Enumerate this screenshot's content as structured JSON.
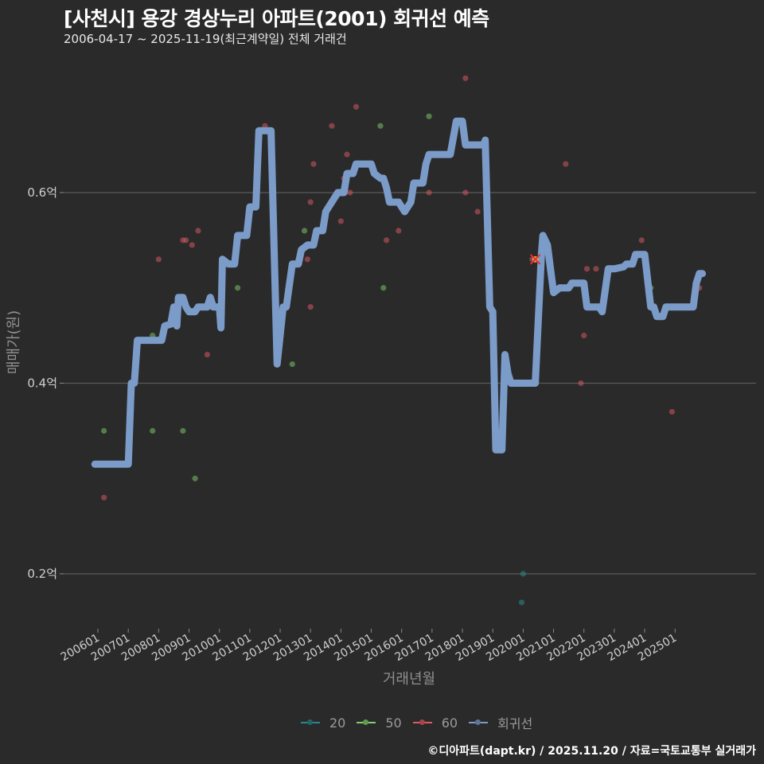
{
  "header": {
    "title": "[사천시] 용강 경상누리 아파트(2001) 회귀선 예측",
    "subtitle": "2006-04-17 ~ 2025-11-19(최근계약일) 전체 거래건"
  },
  "footer": {
    "credit": "©디아파트(dapt.kr) / 2025.11.20 / 자료=국토교통부 실거래가"
  },
  "legend": [
    {
      "label": "20",
      "color": "#2a8a8a"
    },
    {
      "label": "50",
      "color": "#7fcf6a"
    },
    {
      "label": "60",
      "color": "#e05a64"
    },
    {
      "label": "회귀선",
      "color": "#7b9bc8"
    }
  ],
  "chart_data": {
    "type": "scatter",
    "title": "[사천시] 용강 경상누리 아파트(2001) 회귀선 예측",
    "subtitle": "2006-04-17 ~ 2025-11-19(최근계약일) 전체 거래건",
    "xlabel": "거래년월",
    "ylabel": "매매가(원)",
    "x_ticks": [
      "200601",
      "200701",
      "200801",
      "200901",
      "201001",
      "201101",
      "201201",
      "201301",
      "201401",
      "201501",
      "201601",
      "201701",
      "201801",
      "201901",
      "202001",
      "202101",
      "202201",
      "202301",
      "202401",
      "202501"
    ],
    "y_ticks": [
      {
        "value": 0.2,
        "label": "0.2억"
      },
      {
        "value": 0.4,
        "label": "0.4억"
      },
      {
        "value": 0.6,
        "label": "0.6억"
      }
    ],
    "ylim": [
      0.14,
      0.74
    ],
    "xlim": [
      2005.6,
      2026.3
    ],
    "grid": "horizontal",
    "legend_position": "bottom",
    "series": [
      {
        "name": "20",
        "color": "#2a8a8a",
        "points": [
          [
            2020.0,
            0.2
          ],
          [
            2019.95,
            0.17
          ]
        ]
      },
      {
        "name": "50",
        "color": "#7fcf6a",
        "points": [
          [
            2006.2,
            0.35
          ],
          [
            2007.8,
            0.45
          ],
          [
            2007.8,
            0.35
          ],
          [
            2008.8,
            0.35
          ],
          [
            2009.2,
            0.3
          ],
          [
            2010.6,
            0.5
          ],
          [
            2012.4,
            0.42
          ],
          [
            2012.8,
            0.56
          ],
          [
            2015.3,
            0.67
          ],
          [
            2015.4,
            0.5
          ],
          [
            2016.9,
            0.68
          ],
          [
            2024.2,
            0.5
          ]
        ]
      },
      {
        "name": "60",
        "color": "#e05a64",
        "points": [
          [
            2006.2,
            0.28
          ],
          [
            2008.0,
            0.53
          ],
          [
            2008.8,
            0.55
          ],
          [
            2008.9,
            0.55
          ],
          [
            2009.1,
            0.545
          ],
          [
            2009.3,
            0.56
          ],
          [
            2009.6,
            0.43
          ],
          [
            2011.5,
            0.67
          ],
          [
            2012.6,
            0.53
          ],
          [
            2012.9,
            0.53
          ],
          [
            2013.0,
            0.59
          ],
          [
            2013.1,
            0.63
          ],
          [
            2013.0,
            0.48
          ],
          [
            2013.7,
            0.67
          ],
          [
            2014.0,
            0.57
          ],
          [
            2014.1,
            0.615
          ],
          [
            2014.2,
            0.64
          ],
          [
            2014.3,
            0.6
          ],
          [
            2014.5,
            0.69
          ],
          [
            2014.9,
            0.63
          ],
          [
            2015.5,
            0.55
          ],
          [
            2015.9,
            0.56
          ],
          [
            2016.9,
            0.6
          ],
          [
            2018.1,
            0.72
          ],
          [
            2018.1,
            0.6
          ],
          [
            2018.5,
            0.58
          ],
          [
            2020.3,
            0.53
          ],
          [
            2021.4,
            0.63
          ],
          [
            2021.9,
            0.4
          ],
          [
            2022.0,
            0.45
          ],
          [
            2022.1,
            0.52
          ],
          [
            2022.4,
            0.52
          ],
          [
            2023.9,
            0.55
          ],
          [
            2024.9,
            0.37
          ],
          [
            2025.8,
            0.5
          ]
        ]
      },
      {
        "name": "회귀선",
        "color": "#7b9bc8",
        "type": "line",
        "points": [
          [
            2005.9,
            0.315
          ],
          [
            2006.1,
            0.315
          ],
          [
            2007.0,
            0.315
          ],
          [
            2007.1,
            0.4
          ],
          [
            2007.2,
            0.4
          ],
          [
            2007.3,
            0.445
          ],
          [
            2008.0,
            0.445
          ],
          [
            2008.1,
            0.445
          ],
          [
            2008.2,
            0.46
          ],
          [
            2008.4,
            0.462
          ],
          [
            2008.5,
            0.48
          ],
          [
            2008.6,
            0.46
          ],
          [
            2008.65,
            0.49
          ],
          [
            2008.8,
            0.49
          ],
          [
            2008.9,
            0.48
          ],
          [
            2009.0,
            0.475
          ],
          [
            2009.2,
            0.475
          ],
          [
            2009.3,
            0.48
          ],
          [
            2009.4,
            0.48
          ],
          [
            2009.6,
            0.48
          ],
          [
            2009.7,
            0.49
          ],
          [
            2009.8,
            0.48
          ],
          [
            2010.0,
            0.48
          ],
          [
            2010.05,
            0.458
          ],
          [
            2010.1,
            0.53
          ],
          [
            2010.3,
            0.525
          ],
          [
            2010.5,
            0.525
          ],
          [
            2010.6,
            0.555
          ],
          [
            2010.9,
            0.555
          ],
          [
            2011.0,
            0.585
          ],
          [
            2011.2,
            0.585
          ],
          [
            2011.3,
            0.665
          ],
          [
            2011.6,
            0.665
          ],
          [
            2011.7,
            0.665
          ],
          [
            2011.9,
            0.42
          ],
          [
            2012.1,
            0.48
          ],
          [
            2012.2,
            0.48
          ],
          [
            2012.4,
            0.525
          ],
          [
            2012.6,
            0.525
          ],
          [
            2012.7,
            0.54
          ],
          [
            2012.9,
            0.545
          ],
          [
            2013.1,
            0.545
          ],
          [
            2013.2,
            0.56
          ],
          [
            2013.4,
            0.56
          ],
          [
            2013.5,
            0.58
          ],
          [
            2013.7,
            0.59
          ],
          [
            2013.9,
            0.6
          ],
          [
            2014.1,
            0.6
          ],
          [
            2014.2,
            0.62
          ],
          [
            2014.4,
            0.62
          ],
          [
            2014.5,
            0.63
          ],
          [
            2015.0,
            0.63
          ],
          [
            2015.1,
            0.62
          ],
          [
            2015.3,
            0.615
          ],
          [
            2015.4,
            0.615
          ],
          [
            2015.5,
            0.605
          ],
          [
            2015.6,
            0.59
          ],
          [
            2015.9,
            0.59
          ],
          [
            2016.0,
            0.585
          ],
          [
            2016.1,
            0.58
          ],
          [
            2016.3,
            0.59
          ],
          [
            2016.4,
            0.61
          ],
          [
            2016.7,
            0.61
          ],
          [
            2016.8,
            0.63
          ],
          [
            2016.9,
            0.64
          ],
          [
            2017.6,
            0.64
          ],
          [
            2017.8,
            0.675
          ],
          [
            2018.0,
            0.675
          ],
          [
            2018.1,
            0.65
          ],
          [
            2018.7,
            0.65
          ],
          [
            2018.75,
            0.655
          ],
          [
            2018.9,
            0.48
          ],
          [
            2019.0,
            0.475
          ],
          [
            2019.1,
            0.33
          ],
          [
            2019.3,
            0.33
          ],
          [
            2019.4,
            0.43
          ],
          [
            2019.5,
            0.41
          ],
          [
            2019.6,
            0.4
          ],
          [
            2020.4,
            0.4
          ],
          [
            2020.6,
            0.535
          ],
          [
            2020.65,
            0.555
          ],
          [
            2020.8,
            0.545
          ],
          [
            2020.9,
            0.52
          ],
          [
            2021.0,
            0.495
          ],
          [
            2021.2,
            0.5
          ],
          [
            2021.5,
            0.5
          ],
          [
            2021.6,
            0.505
          ],
          [
            2022.0,
            0.505
          ],
          [
            2022.1,
            0.48
          ],
          [
            2022.5,
            0.48
          ],
          [
            2022.6,
            0.475
          ],
          [
            2022.8,
            0.52
          ],
          [
            2023.0,
            0.52
          ],
          [
            2023.3,
            0.522
          ],
          [
            2023.4,
            0.525
          ],
          [
            2023.6,
            0.525
          ],
          [
            2023.7,
            0.535
          ],
          [
            2024.0,
            0.535
          ],
          [
            2024.2,
            0.48
          ],
          [
            2024.3,
            0.48
          ],
          [
            2024.4,
            0.47
          ],
          [
            2024.6,
            0.47
          ],
          [
            2024.7,
            0.48
          ],
          [
            2025.4,
            0.48
          ],
          [
            2025.6,
            0.48
          ],
          [
            2025.7,
            0.505
          ],
          [
            2025.8,
            0.515
          ],
          [
            2025.9,
            0.515
          ]
        ]
      }
    ],
    "annotations": [
      {
        "type": "x-marker",
        "x": 2020.4,
        "y": 0.53,
        "color": "#e0322c",
        "note": "latest transaction highlight"
      }
    ]
  }
}
